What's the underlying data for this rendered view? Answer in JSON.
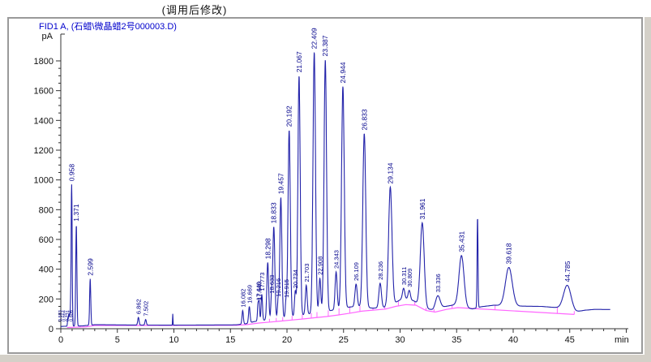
{
  "title": "(调用后修改)",
  "legend": "FID1 A, (石蜡\\微晶蜡2号000003.D)",
  "chart_data": {
    "type": "line",
    "kind": "gc-fid-chromatogram",
    "title": "(调用后修改)",
    "legend": "FID1 A, (石蜡\\微晶蜡2号000003.D)",
    "ylabel": "pA",
    "xlabel": "min",
    "xlim": [
      0,
      50
    ],
    "ylim": [
      0,
      1980
    ],
    "x_major_ticks": [
      0,
      5,
      10,
      15,
      20,
      25,
      30,
      35,
      40,
      45
    ],
    "x_minor_step": 1,
    "y_major_ticks": [
      0,
      200,
      400,
      600,
      800,
      1000,
      1200,
      1400,
      1600,
      1800
    ],
    "y_minor_step": 50,
    "grid": false,
    "legend_position": "top-left",
    "trace_color": "#2323aa",
    "baseline_color": "#ff66ff",
    "label_color": "#00008b",
    "axis_color": "#333333",
    "peaks": [
      {
        "rt": 0.62,
        "apex_pA": 70,
        "sigma": 0.03,
        "label": null
      },
      {
        "rt": 0.7,
        "apex_pA": 92,
        "sigma": 0.03,
        "label": null
      },
      {
        "rt": 0.78,
        "apex_pA": 98,
        "sigma": 0.03,
        "label": null
      },
      {
        "rt": 0.86,
        "apex_pA": 112,
        "sigma": 0.032,
        "label": null
      },
      {
        "rt": 0.958,
        "apex_pA": 970,
        "sigma": 0.045,
        "label": "0.958"
      },
      {
        "rt": 1.371,
        "apex_pA": 700,
        "sigma": 0.05,
        "label": "1.371"
      },
      {
        "rt": 2.599,
        "apex_pA": 335,
        "sigma": 0.05,
        "label": "2.599"
      },
      {
        "rt": 6.862,
        "apex_pA": 76,
        "sigma": 0.06,
        "label": "6.862",
        "small": true
      },
      {
        "rt": 7.502,
        "apex_pA": 62,
        "sigma": 0.06,
        "label": "7.502",
        "small": true
      },
      {
        "rt": 9.9,
        "apex_pA": 100,
        "sigma": 0.018,
        "label": null
      },
      {
        "rt": 16.082,
        "apex_pA": 122,
        "sigma": 0.06,
        "label": "16.082",
        "small": true
      },
      {
        "rt": 16.669,
        "apex_pA": 148,
        "sigma": 0.065,
        "label": "16.669",
        "small": true
      },
      {
        "rt": 17.44,
        "apex_pA": 168,
        "sigma": 0.05,
        "label": "17.440",
        "small": true
      },
      {
        "rt": 17.54,
        "apex_pA": 172,
        "sigma": 0.045,
        "label": "17.540",
        "small": true
      },
      {
        "rt": 17.773,
        "apex_pA": 232,
        "sigma": 0.06,
        "label": "17.773",
        "small": true
      },
      {
        "rt": 18.298,
        "apex_pA": 445,
        "sigma": 0.08,
        "label": "18.298"
      },
      {
        "rt": 18.633,
        "apex_pA": 215,
        "sigma": 0.06,
        "label": "18.633",
        "small": true
      },
      {
        "rt": 18.833,
        "apex_pA": 685,
        "sigma": 0.09,
        "label": "18.833"
      },
      {
        "rt": 19.216,
        "apex_pA": 192,
        "sigma": 0.06,
        "label": "19.216",
        "small": true
      },
      {
        "rt": 19.457,
        "apex_pA": 882,
        "sigma": 0.09,
        "label": "19.457"
      },
      {
        "rt": 19.915,
        "apex_pA": 186,
        "sigma": 0.06,
        "label": "19.915",
        "small": true
      },
      {
        "rt": 20.192,
        "apex_pA": 1335,
        "sigma": 0.1,
        "label": "20.192"
      },
      {
        "rt": 20.734,
        "apex_pA": 250,
        "sigma": 0.07,
        "label": "20.734",
        "small": true
      },
      {
        "rt": 21.067,
        "apex_pA": 1700,
        "sigma": 0.1,
        "label": "21.067"
      },
      {
        "rt": 21.703,
        "apex_pA": 292,
        "sigma": 0.08,
        "label": "21.703",
        "small": true
      },
      {
        "rt": 22.409,
        "apex_pA": 1858,
        "sigma": 0.11,
        "label": "22.409"
      },
      {
        "rt": 22.908,
        "apex_pA": 340,
        "sigma": 0.08,
        "label": "22.908",
        "small": true
      },
      {
        "rt": 23.387,
        "apex_pA": 1808,
        "sigma": 0.11,
        "label": "23.387"
      },
      {
        "rt": 24.343,
        "apex_pA": 382,
        "sigma": 0.09,
        "label": "24.343",
        "small": true
      },
      {
        "rt": 24.944,
        "apex_pA": 1628,
        "sigma": 0.12,
        "label": "24.944"
      },
      {
        "rt": 26.109,
        "apex_pA": 300,
        "sigma": 0.1,
        "label": "26.109",
        "small": true
      },
      {
        "rt": 26.833,
        "apex_pA": 1312,
        "sigma": 0.13,
        "label": "26.833"
      },
      {
        "rt": 28.236,
        "apex_pA": 306,
        "sigma": 0.11,
        "label": "28.236",
        "small": true
      },
      {
        "rt": 29.134,
        "apex_pA": 952,
        "sigma": 0.15,
        "label": "29.134"
      },
      {
        "rt": 30.311,
        "apex_pA": 272,
        "sigma": 0.1,
        "label": "30.311",
        "small": true
      },
      {
        "rt": 30.809,
        "apex_pA": 258,
        "sigma": 0.1,
        "label": "30.809",
        "small": true
      },
      {
        "rt": 31.961,
        "apex_pA": 712,
        "sigma": 0.17,
        "label": "31.961"
      },
      {
        "rt": 33.336,
        "apex_pA": 222,
        "sigma": 0.2,
        "label": "33.336",
        "small": true
      },
      {
        "rt": 35.431,
        "apex_pA": 492,
        "sigma": 0.22,
        "label": "35.431"
      },
      {
        "rt": 36.85,
        "apex_pA": 752,
        "sigma": 0.04,
        "label": null
      },
      {
        "rt": 39.618,
        "apex_pA": 412,
        "sigma": 0.3,
        "label": "39.618"
      },
      {
        "rt": 44.785,
        "apex_pA": 292,
        "sigma": 0.33,
        "label": "44.785"
      }
    ],
    "early_cluster_labels": [
      "0.593",
      "0.664",
      "0.731",
      "0.806"
    ],
    "floor_points": [
      [
        0,
        15
      ],
      [
        0.45,
        17
      ],
      [
        1.9,
        19
      ],
      [
        3.0,
        27
      ],
      [
        6.4,
        25
      ],
      [
        9.5,
        24
      ],
      [
        15.5,
        26
      ],
      [
        16.4,
        34
      ],
      [
        17.1,
        48
      ],
      [
        18.0,
        58
      ],
      [
        19.0,
        68
      ],
      [
        20.0,
        78
      ],
      [
        21.0,
        88
      ],
      [
        22.0,
        100
      ],
      [
        23.0,
        112
      ],
      [
        24.0,
        124
      ],
      [
        25.0,
        140
      ],
      [
        25.7,
        147
      ],
      [
        26.5,
        149
      ],
      [
        27.6,
        138
      ],
      [
        28.6,
        144
      ],
      [
        29.5,
        172
      ],
      [
        30.1,
        198
      ],
      [
        30.55,
        200
      ],
      [
        31.2,
        188
      ],
      [
        32.2,
        138
      ],
      [
        32.9,
        126
      ],
      [
        33.9,
        148
      ],
      [
        34.9,
        162
      ],
      [
        35.9,
        140
      ],
      [
        36.4,
        133
      ],
      [
        37.2,
        148
      ],
      [
        38.3,
        158
      ],
      [
        40.5,
        152
      ],
      [
        42.5,
        150
      ],
      [
        43.8,
        142
      ],
      [
        44.3,
        135
      ],
      [
        45.5,
        113
      ],
      [
        46.3,
        124
      ],
      [
        47.2,
        130
      ],
      [
        50,
        128
      ]
    ],
    "baseline_points": [
      [
        0.55,
        8
      ],
      [
        1.15,
        10
      ],
      [
        2.2,
        12
      ],
      [
        3.0,
        22
      ],
      [
        6.5,
        22
      ],
      [
        15.6,
        23
      ],
      [
        16.5,
        28
      ],
      [
        17.5,
        38
      ],
      [
        18.5,
        45
      ],
      [
        19.5,
        52
      ],
      [
        20.5,
        59
      ],
      [
        21.5,
        66
      ],
      [
        22.5,
        74
      ],
      [
        23.5,
        82
      ],
      [
        24.5,
        92
      ],
      [
        25.6,
        105
      ],
      [
        26.6,
        118
      ],
      [
        27.6,
        125
      ],
      [
        28.7,
        132
      ],
      [
        29.6,
        150
      ],
      [
        30.5,
        162
      ],
      [
        31.4,
        158
      ],
      [
        32.3,
        122
      ],
      [
        33.1,
        112
      ],
      [
        34.1,
        130
      ],
      [
        35.1,
        142
      ],
      [
        45.4,
        96
      ]
    ],
    "dropline_times": [
      18.45,
      19.05,
      19.62,
      20.45,
      21.35,
      22.15,
      22.65,
      23.65,
      24.6,
      25.55,
      26.45,
      27.6,
      28.65,
      29.85,
      31.3,
      32.3,
      33.0,
      34.6,
      36.2,
      38.4,
      43.9,
      45.4
    ]
  }
}
